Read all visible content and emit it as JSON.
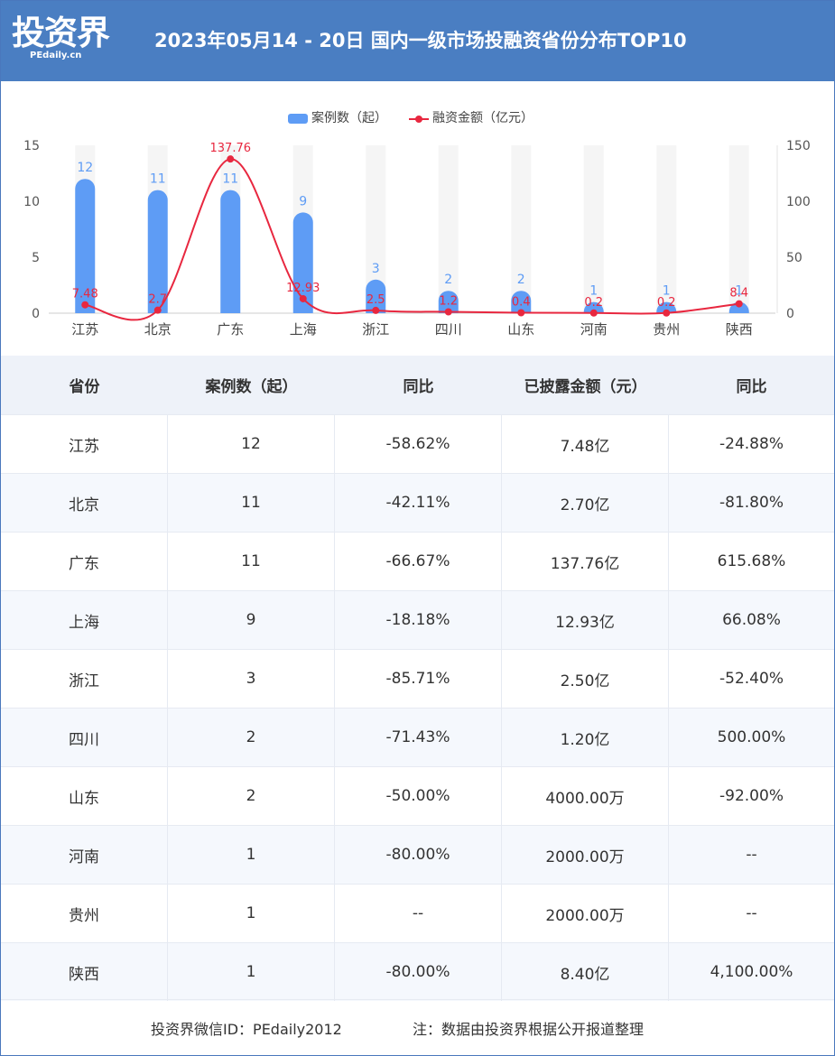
{
  "header": {
    "logo": "投资界",
    "logo_sub": "PEdaily.cn",
    "title": "2023年05月14 - 20日 国内一级市场投融资省份分布TOP10"
  },
  "legend": {
    "bar_label": "案例数（起）",
    "line_label": "融资金额（亿元）"
  },
  "colors": {
    "header_bg": "#4a7ec2",
    "bar": "#5e9cf5",
    "line": "#e8273f",
    "bar_bg": "#f5f5f5"
  },
  "chart_data": {
    "type": "bar",
    "categories": [
      "江苏",
      "北京",
      "广东",
      "上海",
      "浙江",
      "四川",
      "山东",
      "河南",
      "贵州",
      "陕西"
    ],
    "series": [
      {
        "name": "案例数（起）",
        "type": "bar",
        "axis": "left",
        "values": [
          12,
          11,
          11,
          9,
          3,
          2,
          2,
          1,
          1,
          1
        ],
        "labels": [
          "12",
          "11",
          "11",
          "9",
          "3",
          "2",
          "2",
          "1",
          "1",
          "1"
        ]
      },
      {
        "name": "融资金额（亿元）",
        "type": "line",
        "axis": "right",
        "values": [
          7.48,
          2.7,
          137.76,
          12.93,
          2.5,
          1.2,
          0.4,
          0.2,
          0.2,
          8.4
        ],
        "labels": [
          "7.48",
          "2.7",
          "137.76",
          "12.93",
          "2.5",
          "1.2",
          "0.4",
          "0.2",
          "0.2",
          "8.4"
        ]
      }
    ],
    "left_axis": {
      "ylim": [
        0,
        15
      ],
      "ticks": [
        "0",
        "5",
        "10",
        "15"
      ]
    },
    "right_axis": {
      "ylim": [
        0,
        150
      ],
      "ticks": [
        "0",
        "50",
        "100",
        "150"
      ]
    },
    "grid": false,
    "legend_position": "top-center"
  },
  "table": {
    "headers": [
      "省份",
      "案例数（起）",
      "同比",
      "已披露金额（元）",
      "同比"
    ],
    "rows": [
      [
        "江苏",
        "12",
        "-58.62%",
        "7.48亿",
        "-24.88%"
      ],
      [
        "北京",
        "11",
        "-42.11%",
        "2.70亿",
        "-81.80%"
      ],
      [
        "广东",
        "11",
        "-66.67%",
        "137.76亿",
        "615.68%"
      ],
      [
        "上海",
        "9",
        "-18.18%",
        "12.93亿",
        "66.08%"
      ],
      [
        "浙江",
        "3",
        "-85.71%",
        "2.50亿",
        "-52.40%"
      ],
      [
        "四川",
        "2",
        "-71.43%",
        "1.20亿",
        "500.00%"
      ],
      [
        "山东",
        "2",
        "-50.00%",
        "4000.00万",
        "-92.00%"
      ],
      [
        "河南",
        "1",
        "-80.00%",
        "2000.00万",
        "--"
      ],
      [
        "贵州",
        "1",
        "--",
        "2000.00万",
        "--"
      ],
      [
        "陕西",
        "1",
        "-80.00%",
        "8.40亿",
        "4,100.00%"
      ]
    ]
  },
  "footer": {
    "left": "投资界微信ID：PEdaily2012",
    "right": "注：数据由投资界根据公开报道整理"
  }
}
